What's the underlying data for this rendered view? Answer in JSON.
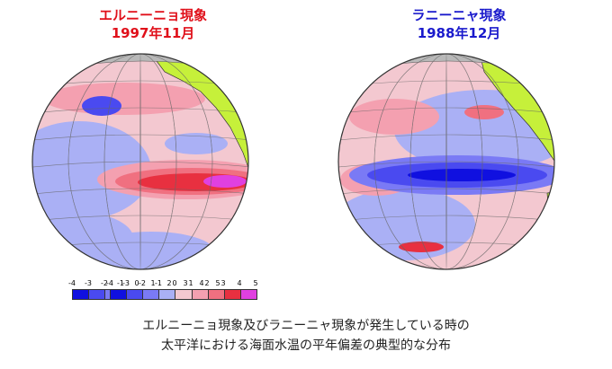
{
  "panels": [
    {
      "title_line1": "エルニーニョ現象",
      "title_line2": "1997年11月",
      "title_color": "#e0101a",
      "mode": "elnino"
    },
    {
      "title_line1": "ラニーニャ現象",
      "title_line2": "1988年12月",
      "title_color": "#1a1acc",
      "mode": "lanina"
    }
  ],
  "colorbar": {
    "ticks": [
      "-4",
      "-3",
      "-2",
      "-1",
      "0",
      "1",
      "2",
      "3",
      "4",
      "5"
    ],
    "colors": [
      "#1010e0",
      "#4a4af0",
      "#7a7af5",
      "#aab0f5",
      "#f3c8d0",
      "#f4a0b0",
      "#f07080",
      "#e83040",
      "#e040e0"
    ]
  },
  "caption": {
    "line1": "エルニーニョ現象及びラニーニャ現象が発生している時の",
    "line2": "太平洋における海面水温の平年偏差の典型的な分布"
  }
}
